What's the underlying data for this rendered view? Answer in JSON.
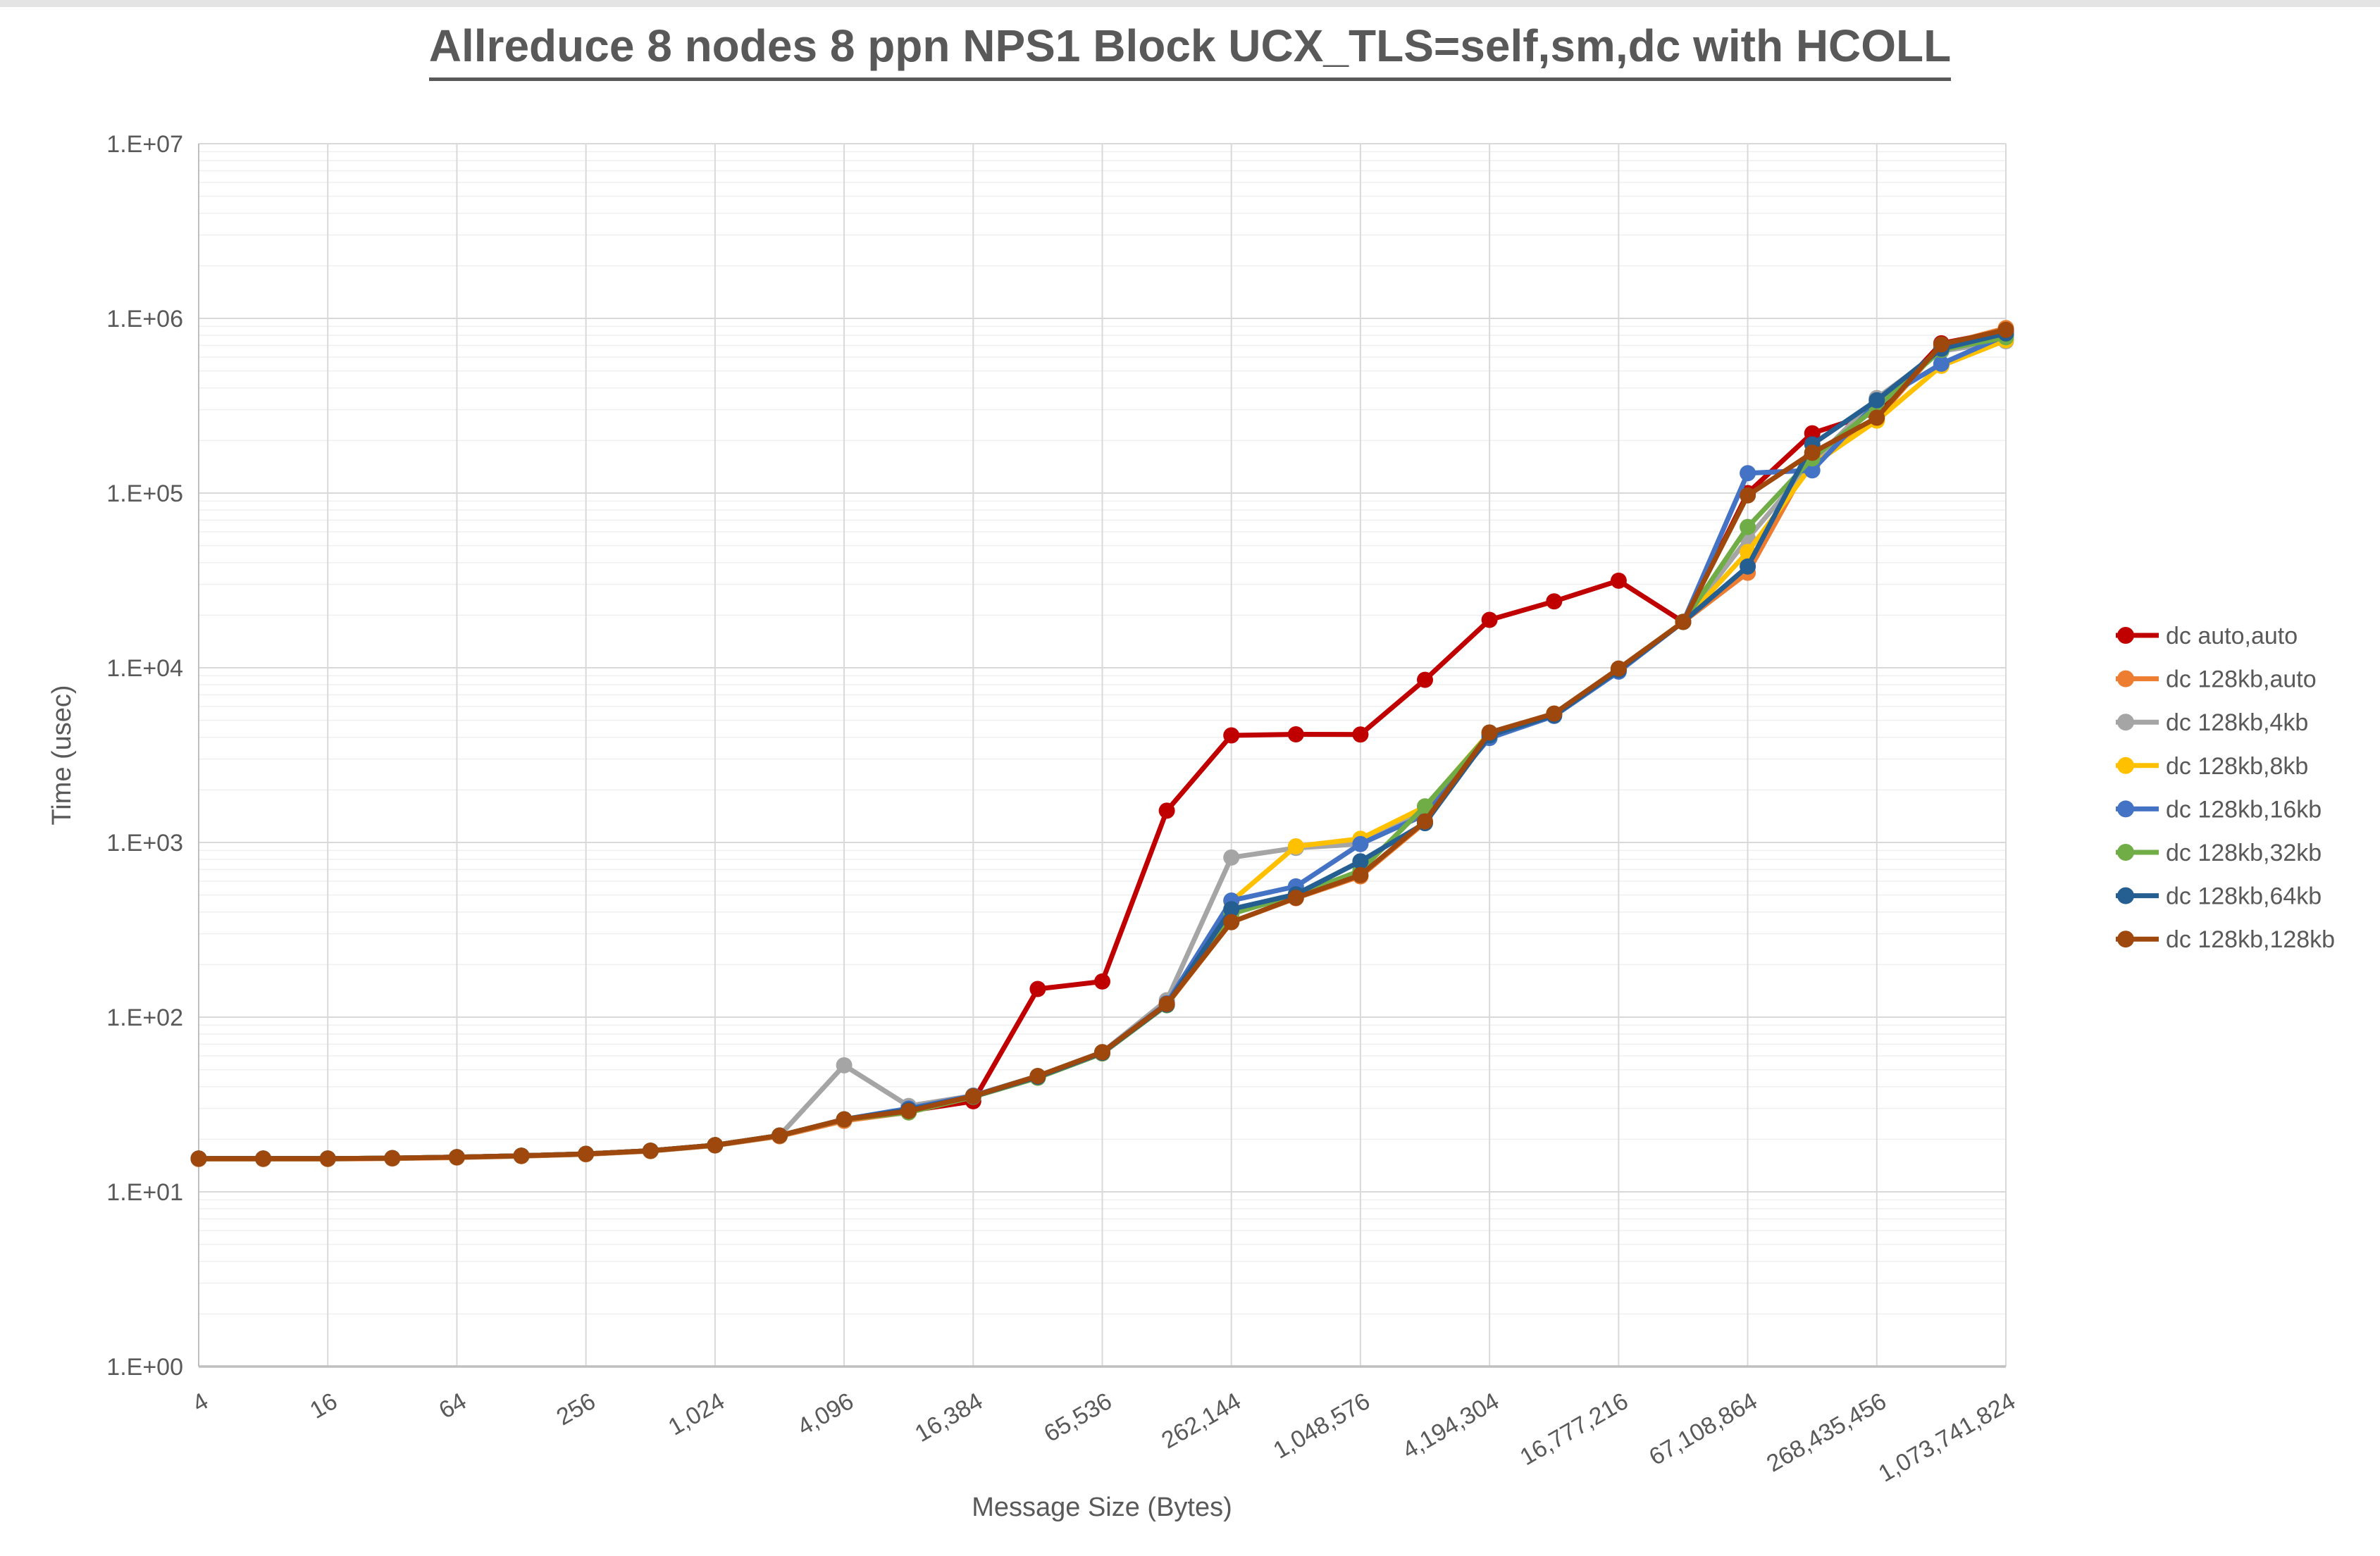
{
  "title": "Allreduce 8 nodes 8 ppn NPS1 Block UCX_TLS=self,sm,dc with HCOLL",
  "x_axis": {
    "title": "Message Size (Bytes)"
  },
  "y_axis": {
    "title": "Time (usec)",
    "tick_labels": [
      "1.E+00",
      "1.E+01",
      "1.E+02",
      "1.E+03",
      "1.E+04",
      "1.E+05",
      "1.E+06",
      "1.E+07"
    ]
  },
  "style": {
    "text_color": "#595959",
    "major_grid_color": "#d9d9d9",
    "minor_grid_color": "#efefef",
    "axis_line_color": "#bfbfbf"
  },
  "legend": {
    "position": "right"
  },
  "chart_data": {
    "type": "line",
    "x_scale": "log2",
    "y_scale": "log10",
    "ylim": [
      1,
      10000000
    ],
    "grid": "major+minor",
    "title": "Allreduce 8 nodes 8 ppn NPS1 Block UCX_TLS=self,sm,dc with HCOLL",
    "xlabel": "Message Size (Bytes)",
    "ylabel": "Time (usec)",
    "x": [
      4,
      8,
      16,
      32,
      64,
      128,
      256,
      512,
      1024,
      2048,
      4096,
      8192,
      16384,
      32768,
      65536,
      131072,
      262144,
      524288,
      1048576,
      2097152,
      4194304,
      8388608,
      16777216,
      33554432,
      67108864,
      134217728,
      268435456,
      536870912,
      1073741824
    ],
    "x_tick_labels": [
      "4",
      "16",
      "64",
      "256",
      "1,024",
      "4,096",
      "16,384",
      "65,536",
      "262,144",
      "1,048,576",
      "4,194,304",
      "16,777,216",
      "67,108,864",
      "268,435,456",
      "1,073,741,824"
    ],
    "series": [
      {
        "name": "dc auto,auto",
        "color": "#C00000",
        "values": [
          15.5,
          15.5,
          15.5,
          15.6,
          15.8,
          16.1,
          16.5,
          17.2,
          18.5,
          21,
          26,
          29,
          33,
          145,
          160,
          1520,
          4100,
          4160,
          4150,
          8530,
          18800,
          24000,
          31500,
          18300,
          100000,
          220000,
          290000,
          720000,
          850000
        ]
      },
      {
        "name": "dc 128kb,auto",
        "color": "#ED7D31",
        "values": [
          15.4,
          15.4,
          15.4,
          15.5,
          15.7,
          16.0,
          16.4,
          17.1,
          18.4,
          20.8,
          25.5,
          28.5,
          35,
          45,
          62,
          118,
          350,
          480,
          640,
          1300,
          4200,
          5400,
          9750,
          18300,
          35000,
          162000,
          265000,
          700000,
          880000
        ]
      },
      {
        "name": "dc 128kb,4kb",
        "color": "#A5A5A5",
        "values": [
          15.5,
          15.5,
          15.5,
          15.6,
          15.8,
          16.1,
          16.5,
          17.2,
          18.5,
          21,
          53,
          31,
          35.5,
          46,
          63,
          125,
          820,
          930,
          980,
          1560,
          4200,
          5400,
          9850,
          18300,
          55000,
          150000,
          350000,
          650000,
          740000
        ]
      },
      {
        "name": "dc 128kb,8kb",
        "color": "#FFC000",
        "values": [
          15.5,
          15.5,
          15.5,
          15.6,
          15.8,
          16.1,
          16.5,
          17.2,
          18.5,
          21,
          26,
          29,
          35.5,
          46,
          63,
          118,
          460,
          950,
          1050,
          1600,
          4250,
          5400,
          9850,
          18300,
          46000,
          145000,
          260000,
          535000,
          750000
        ]
      },
      {
        "name": "dc 128kb,16kb",
        "color": "#4472C4",
        "values": [
          15.5,
          15.5,
          15.5,
          15.6,
          15.8,
          16.1,
          16.5,
          17.2,
          18.5,
          21,
          26,
          30,
          35.5,
          46,
          63,
          120,
          465,
          560,
          980,
          1440,
          3960,
          5300,
          9500,
          18300,
          130000,
          135000,
          330000,
          550000,
          800000
        ]
      },
      {
        "name": "dc 128kb,32kb",
        "color": "#70AD47",
        "values": [
          15.5,
          15.5,
          15.5,
          15.6,
          15.8,
          16.1,
          16.5,
          17.2,
          18.5,
          21,
          26,
          28.5,
          35,
          45,
          62,
          117,
          390,
          500,
          690,
          1610,
          4200,
          5450,
          9800,
          18300,
          64000,
          158000,
          310000,
          660000,
          780000
        ]
      },
      {
        "name": "dc 128kb,64kb",
        "color": "#255E91",
        "values": [
          15.5,
          15.5,
          15.5,
          15.6,
          15.8,
          16.1,
          16.5,
          17.2,
          18.5,
          21,
          26,
          29.5,
          35.2,
          45.5,
          62.5,
          118,
          415,
          505,
          780,
          1290,
          4100,
          5350,
          9700,
          18300,
          38000,
          190000,
          340000,
          670000,
          820000
        ]
      },
      {
        "name": "dc 128kb,128kb",
        "color": "#9E480E",
        "values": [
          15.5,
          15.5,
          15.5,
          15.6,
          15.8,
          16.1,
          16.5,
          17.2,
          18.5,
          21,
          26,
          29,
          35.3,
          46,
          63,
          119,
          350,
          482,
          650,
          1320,
          4260,
          5470,
          9900,
          18300,
          97000,
          170000,
          270000,
          710000,
          860000
        ]
      }
    ]
  }
}
